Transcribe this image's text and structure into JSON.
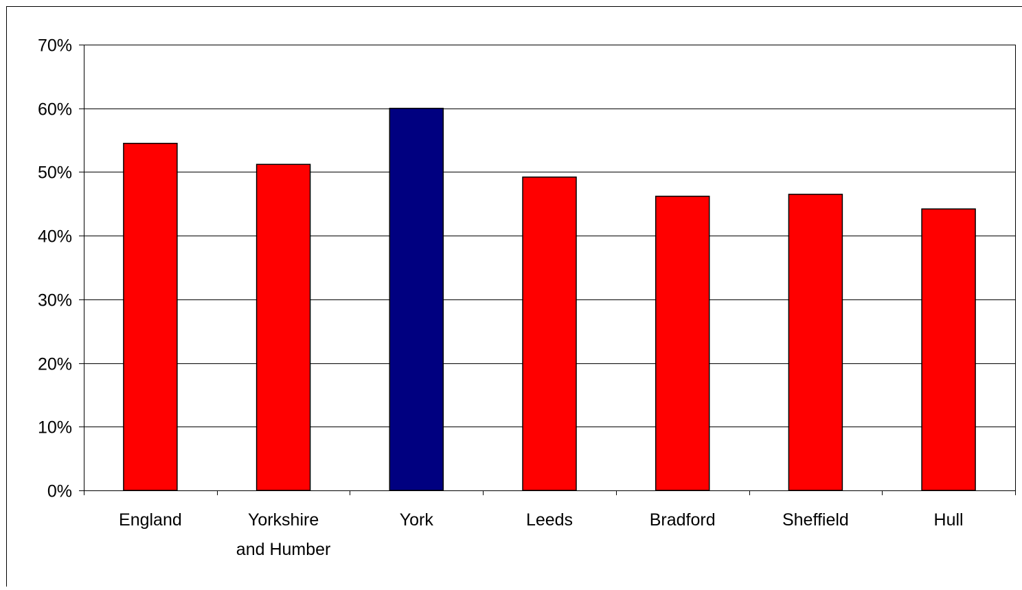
{
  "chart_data": {
    "type": "bar",
    "title": "",
    "xlabel": "",
    "ylabel": "",
    "categories": [
      [
        "England"
      ],
      [
        "Yorkshire",
        "and Humber"
      ],
      [
        "York"
      ],
      [
        "Leeds"
      ],
      [
        "Bradford"
      ],
      [
        "Sheffield"
      ],
      [
        "Hull"
      ]
    ],
    "values": [
      54.5,
      51.2,
      60.0,
      49.2,
      46.2,
      46.5,
      44.2
    ],
    "highlight_index": 2,
    "ylim": [
      0,
      70
    ],
    "yticks": [
      0,
      10,
      20,
      30,
      40,
      50,
      60,
      70
    ],
    "ytick_labels": [
      "0%",
      "10%",
      "20%",
      "30%",
      "40%",
      "50%",
      "60%",
      "70%"
    ],
    "grid": true,
    "legend": "none",
    "colors": {
      "bar": "#ff0000",
      "highlight": "#000080",
      "outline": "#000000",
      "grid": "#000000",
      "background": "#ffffff"
    }
  }
}
